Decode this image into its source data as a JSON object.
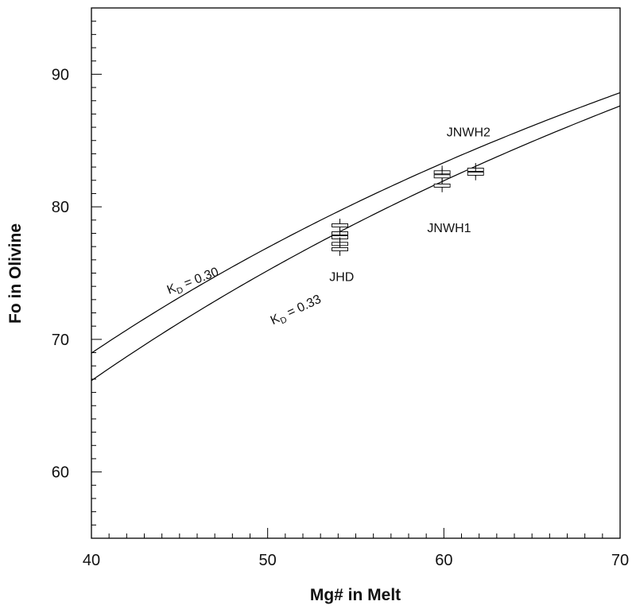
{
  "chart_data": {
    "type": "scatter",
    "xlabel": "Mg# in Melt",
    "ylabel": "Fo in Olivine",
    "xlim": [
      40,
      70
    ],
    "ylim": [
      55,
      95
    ],
    "x_ticks": [
      40,
      50,
      60,
      70
    ],
    "y_ticks": [
      60,
      70,
      80,
      90
    ],
    "x_minor_step": 1,
    "y_minor_step": 1,
    "curves": [
      {
        "name": "KD = 0.30",
        "kd": 0.3,
        "label_k": "K",
        "label_sub": "D",
        "label_rest": " = 0.30",
        "label_x": 44.4,
        "label_y": 73.4,
        "label_angle_deg": -21
      },
      {
        "name": "KD = 0.33",
        "kd": 0.33,
        "label_k": "K",
        "label_sub": "D",
        "label_rest": " = 0.33",
        "label_x": 50.3,
        "label_y": 71.1,
        "label_angle_deg": -25
      }
    ],
    "groups": [
      {
        "name": "JHD",
        "label": "JHD",
        "label_x": 54.2,
        "label_y": 74.4
      },
      {
        "name": "JNWH1",
        "label": "JNWH1",
        "label_x": 60.3,
        "label_y": 78.1
      },
      {
        "name": "JNWH2",
        "label": "JNWH2",
        "label_x": 61.4,
        "label_y": 85.3
      }
    ],
    "series": [
      {
        "name": "JHD",
        "points": [
          {
            "x": 54.1,
            "y": 78.6,
            "err": 0.5
          },
          {
            "x": 54.1,
            "y": 78.0,
            "err": 0.5
          },
          {
            "x": 54.1,
            "y": 77.7,
            "err": 0.5
          },
          {
            "x": 54.1,
            "y": 77.2,
            "err": 0.5
          },
          {
            "x": 54.1,
            "y": 76.8,
            "err": 0.5
          }
        ]
      },
      {
        "name": "JNWH1",
        "points": [
          {
            "x": 59.9,
            "y": 82.6,
            "err": 0.5
          },
          {
            "x": 59.9,
            "y": 82.3,
            "err": 0.6
          },
          {
            "x": 59.9,
            "y": 81.6,
            "err": 0.5
          }
        ]
      },
      {
        "name": "JNWH2",
        "points": [
          {
            "x": 61.8,
            "y": 82.8,
            "err": 0.5
          },
          {
            "x": 61.8,
            "y": 82.5,
            "err": 0.5
          }
        ]
      }
    ]
  }
}
